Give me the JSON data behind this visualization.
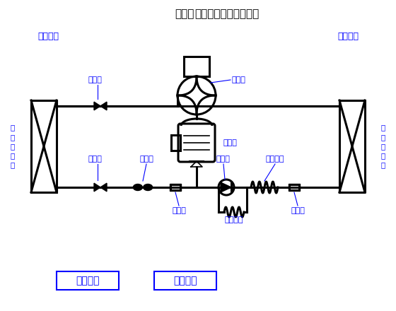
{
  "title_bold": "热泵型",
  "title_normal": "分体挂壁机工作原理图",
  "blue": "#0000FF",
  "black": "#000000",
  "white": "#FFFFFF",
  "label_indoor_unit": "室内机组",
  "label_outdoor_unit": "室外机组",
  "label_indoor_hx": "室\n内\n换\n热\n器",
  "label_outdoor_hx": "室\n外\n换\n热\n器",
  "label_valve1": "截止阀",
  "label_valve2": "截止阀",
  "label_4way": "换向器",
  "label_compressor": "压缩机",
  "label_muffler": "消声器",
  "label_filter1": "过滤器",
  "label_filter2": "过滤器",
  "label_check": "止回阀",
  "label_main_cap": "主毛细管",
  "label_sub_cap": "副毛细管",
  "label_cooling": "制冷工况",
  "label_heating": "制热工况"
}
